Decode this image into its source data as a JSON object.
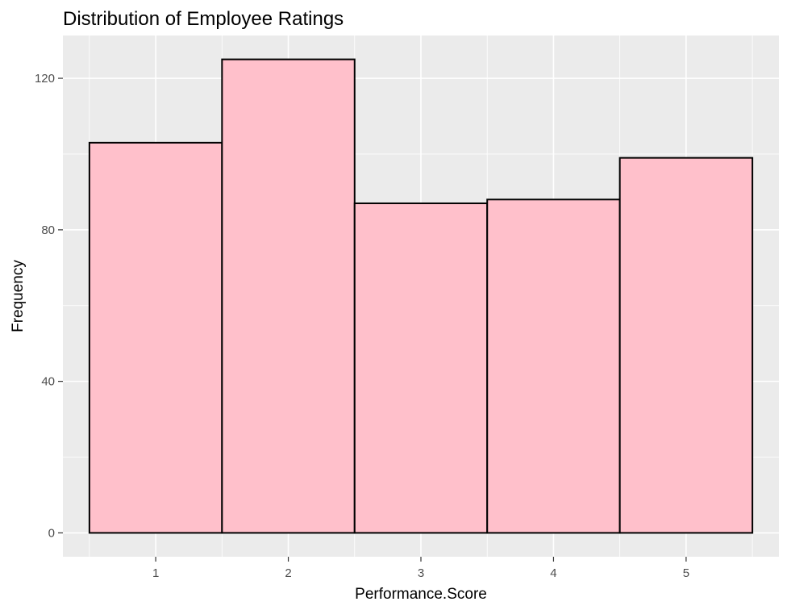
{
  "chart_data": {
    "type": "bar",
    "title": "Distribution of Employee Ratings",
    "xlabel": "Performance.Score",
    "ylabel": "Frequency",
    "categories": [
      "1",
      "2",
      "3",
      "4",
      "5"
    ],
    "values": [
      103,
      125,
      87,
      88,
      99
    ],
    "xlim": [
      0.3,
      5.7
    ],
    "ylim": [
      -6.3,
      131.3
    ],
    "yticks": [
      0,
      40,
      80,
      120
    ],
    "ytick_labels": [
      "0",
      "40",
      "80",
      "120"
    ],
    "grid": true,
    "legend": "none",
    "colors": {
      "bar_fill": "#FFC0CB",
      "bar_outline": "#000000",
      "panel_background": "#EBEBEB",
      "grid": "#FFFFFF"
    }
  }
}
